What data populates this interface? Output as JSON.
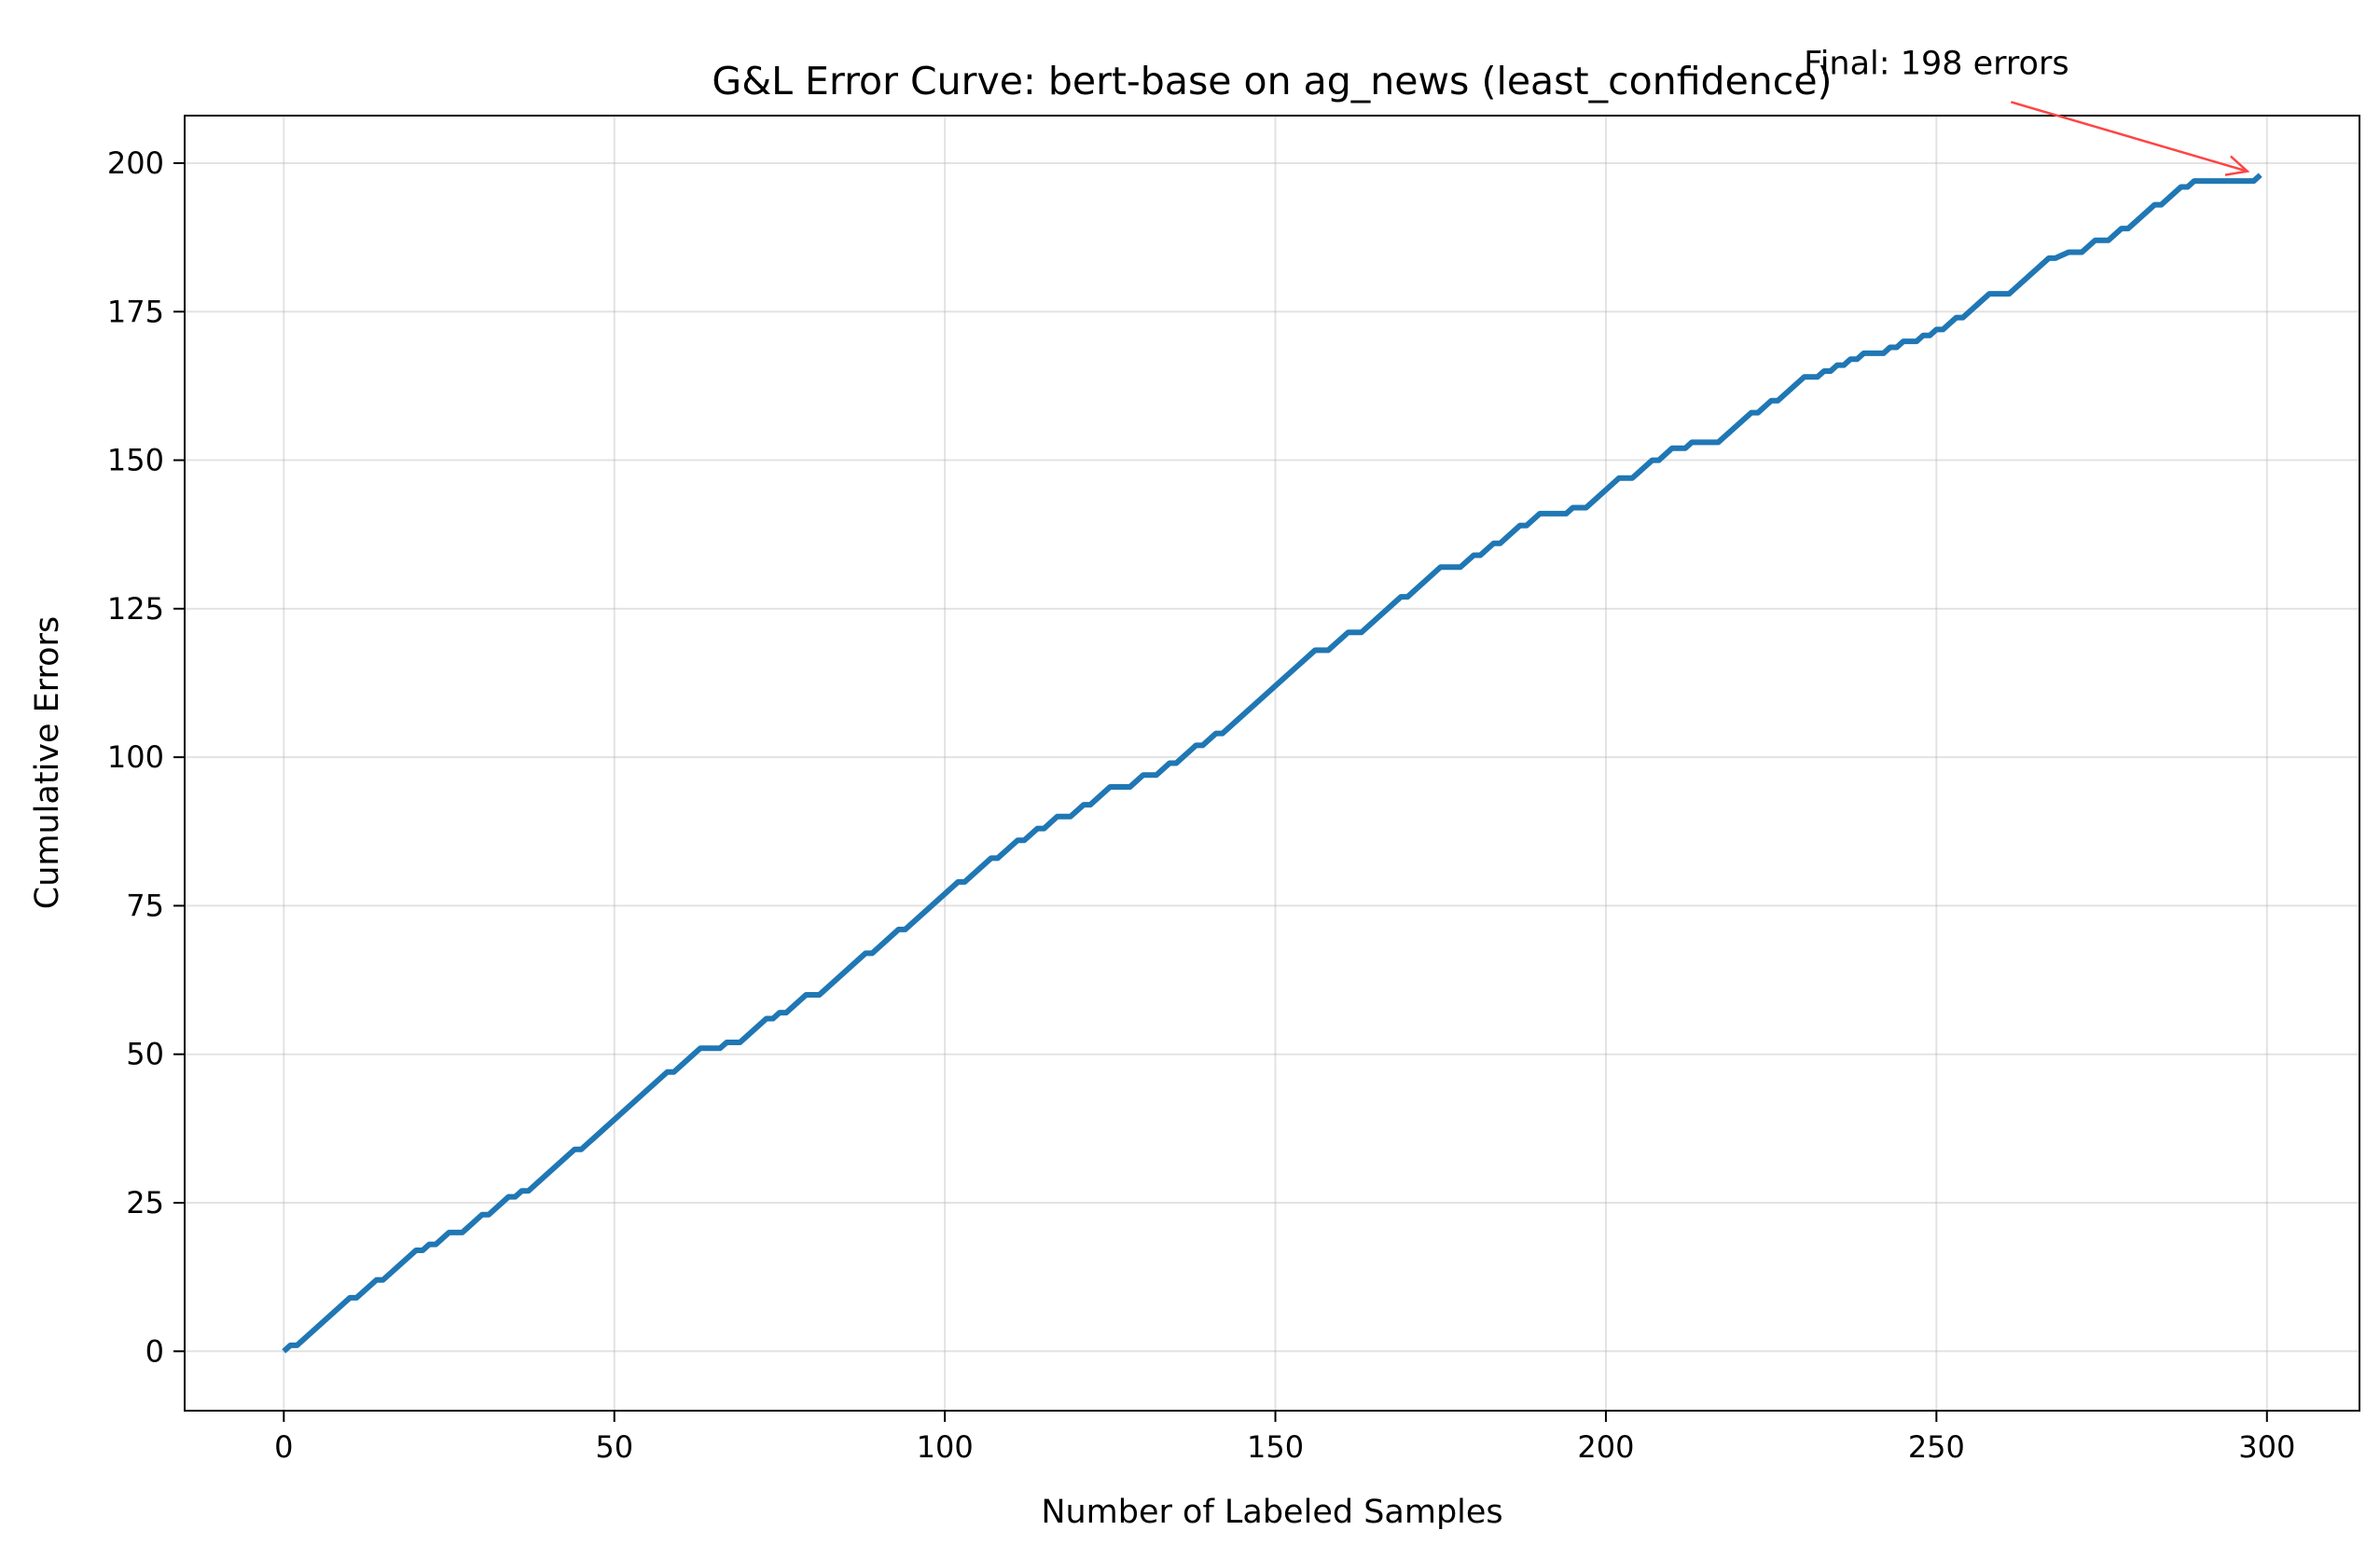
{
  "chart_data": {
    "type": "line",
    "title": "G&L Error Curve: bert-base on ag_news (least_confidence)",
    "xlabel": "Number of Labeled Samples",
    "ylabel": "Cumulative Errors",
    "xlim": [
      -15,
      314
    ],
    "ylim": [
      -10,
      208
    ],
    "xticks": [
      0,
      50,
      100,
      150,
      200,
      250,
      300
    ],
    "yticks": [
      0,
      25,
      50,
      75,
      100,
      125,
      150,
      175,
      200
    ],
    "xtick_labels": [
      "0",
      "50",
      "100",
      "150",
      "200",
      "250",
      "300"
    ],
    "ytick_labels": [
      "0",
      "25",
      "50",
      "75",
      "100",
      "125",
      "150",
      "175",
      "200"
    ],
    "grid": true,
    "line_color": "#1f77b4",
    "annotation_color": "#ff4444",
    "annotation": {
      "text": "Final: 198 errors",
      "point": [
        299,
        198
      ],
      "text_anchor_data": [
        250,
        215
      ]
    },
    "series": [
      {
        "points": [
          [
            0,
            0
          ],
          [
            1,
            1
          ],
          [
            2,
            1
          ],
          [
            10,
            9
          ],
          [
            11,
            9
          ],
          [
            14,
            12
          ],
          [
            15,
            12
          ],
          [
            20,
            17
          ],
          [
            21,
            17
          ],
          [
            22,
            18
          ],
          [
            23,
            18
          ],
          [
            25,
            20
          ],
          [
            27,
            20
          ],
          [
            30,
            23
          ],
          [
            31,
            23
          ],
          [
            34,
            26
          ],
          [
            35,
            26
          ],
          [
            36,
            27
          ],
          [
            37,
            27
          ],
          [
            44,
            34
          ],
          [
            45,
            34
          ],
          [
            58,
            47
          ],
          [
            59,
            47
          ],
          [
            63,
            51
          ],
          [
            66,
            51
          ],
          [
            67,
            52
          ],
          [
            69,
            52
          ],
          [
            73,
            56
          ],
          [
            74,
            56
          ],
          [
            75,
            57
          ],
          [
            76,
            57
          ],
          [
            79,
            60
          ],
          [
            81,
            60
          ],
          [
            88,
            67
          ],
          [
            89,
            67
          ],
          [
            93,
            71
          ],
          [
            94,
            71
          ],
          [
            101,
            78
          ],
          [
            102,
            79
          ],
          [
            103,
            79
          ],
          [
            107,
            83
          ],
          [
            108,
            83
          ],
          [
            111,
            86
          ],
          [
            112,
            86
          ],
          [
            114,
            88
          ],
          [
            115,
            88
          ],
          [
            117,
            90
          ],
          [
            119,
            90
          ],
          [
            121,
            92
          ],
          [
            122,
            92
          ],
          [
            125,
            95
          ],
          [
            128,
            95
          ],
          [
            130,
            97
          ],
          [
            132,
            97
          ],
          [
            134,
            99
          ],
          [
            135,
            99
          ],
          [
            138,
            102
          ],
          [
            139,
            102
          ],
          [
            141,
            104
          ],
          [
            142,
            104
          ],
          [
            156,
            118
          ],
          [
            158,
            118
          ],
          [
            161,
            121
          ],
          [
            163,
            121
          ],
          [
            169,
            127
          ],
          [
            170,
            127
          ],
          [
            175,
            132
          ],
          [
            178,
            132
          ],
          [
            180,
            134
          ],
          [
            181,
            134
          ],
          [
            183,
            136
          ],
          [
            184,
            136
          ],
          [
            187,
            139
          ],
          [
            188,
            139
          ],
          [
            190,
            141
          ],
          [
            194,
            141
          ],
          [
            195,
            142
          ],
          [
            197,
            142
          ],
          [
            202,
            147
          ],
          [
            204,
            147
          ],
          [
            207,
            150
          ],
          [
            208,
            150
          ],
          [
            210,
            152
          ],
          [
            212,
            152
          ],
          [
            213,
            153
          ],
          [
            217,
            153
          ],
          [
            222,
            158
          ],
          [
            223,
            158
          ],
          [
            225,
            160
          ],
          [
            226,
            160
          ],
          [
            230,
            164
          ],
          [
            232,
            164
          ],
          [
            233,
            165
          ],
          [
            234,
            165
          ],
          [
            235,
            166
          ],
          [
            236,
            166
          ],
          [
            237,
            167
          ],
          [
            238,
            167
          ],
          [
            239,
            168
          ],
          [
            242,
            168
          ],
          [
            243,
            169
          ],
          [
            244,
            169
          ],
          [
            245,
            170
          ],
          [
            247,
            170
          ],
          [
            248,
            171
          ],
          [
            249,
            171
          ],
          [
            250,
            172
          ],
          [
            251,
            172
          ],
          [
            253,
            174
          ],
          [
            254,
            174
          ],
          [
            258,
            178
          ],
          [
            261,
            178
          ],
          [
            267,
            184
          ],
          [
            268,
            184
          ],
          [
            270,
            185
          ],
          [
            272,
            185
          ],
          [
            274,
            187
          ],
          [
            276,
            187
          ],
          [
            278,
            189
          ],
          [
            279,
            189
          ],
          [
            283,
            193
          ],
          [
            284,
            193
          ],
          [
            287,
            196
          ],
          [
            288,
            196
          ],
          [
            289,
            197
          ],
          [
            298,
            197
          ],
          [
            299,
            198
          ]
        ]
      }
    ]
  }
}
